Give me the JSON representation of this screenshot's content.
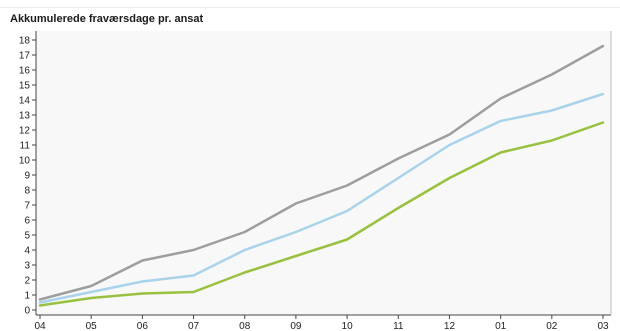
{
  "colors": {
    "plot_background": "#f8f8f8",
    "axis": "#444444",
    "gray_series": "#9e9e9e",
    "blue_series": "#a9d3ea",
    "green_series": "#99c140"
  },
  "chart_data": {
    "type": "line",
    "title": "Akkumulerede fraværsdage pr. ansat",
    "xlabel": "",
    "ylabel": "",
    "categories": [
      "04",
      "05",
      "06",
      "07",
      "08",
      "09",
      "10",
      "11",
      "12",
      "01",
      "02",
      "03"
    ],
    "ylim": [
      0,
      18
    ],
    "yticks": [
      0,
      1,
      2,
      3,
      4,
      5,
      6,
      7,
      8,
      9,
      10,
      11,
      12,
      13,
      14,
      15,
      16,
      17,
      18
    ],
    "grid": false,
    "legend": false,
    "series": [
      {
        "color": "#9e9e9e",
        "values": [
          0.7,
          1.6,
          3.3,
          4.0,
          5.2,
          7.1,
          8.3,
          10.1,
          11.7,
          14.1,
          15.7,
          17.6
        ]
      },
      {
        "color": "#a9d3ea",
        "values": [
          0.5,
          1.2,
          1.9,
          2.3,
          4.0,
          5.2,
          6.6,
          8.8,
          11.0,
          12.6,
          13.3,
          14.4
        ]
      },
      {
        "color": "#99c140",
        "values": [
          0.3,
          0.8,
          1.1,
          1.2,
          2.5,
          3.6,
          4.7,
          6.8,
          8.8,
          10.5,
          11.3,
          12.5
        ]
      }
    ]
  }
}
